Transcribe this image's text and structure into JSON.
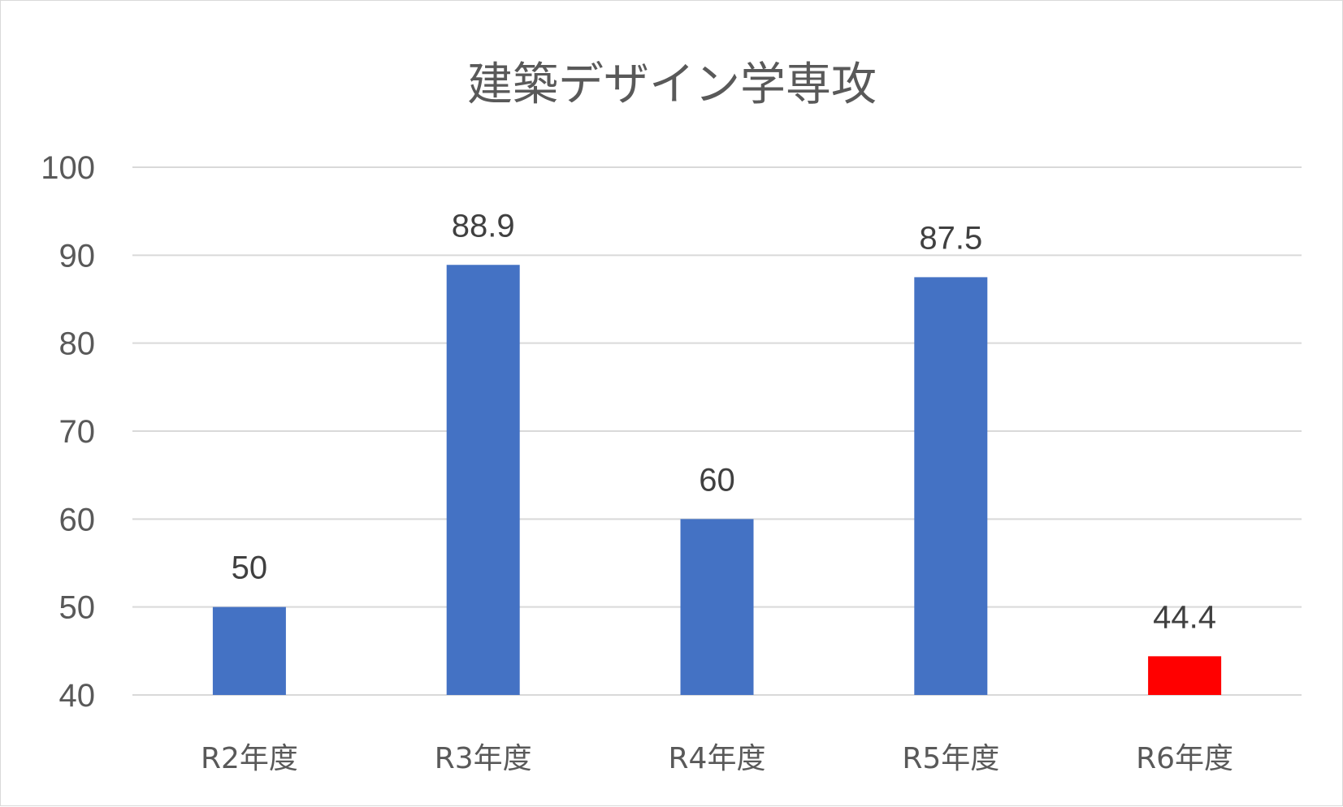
{
  "chart_data": {
    "type": "bar",
    "title": "建築デザイン学専攻",
    "categories": [
      "R2年度",
      "R3年度",
      "R4年度",
      "R5年度",
      "R6年度"
    ],
    "values": [
      50,
      88.9,
      60,
      87.5,
      44.4
    ],
    "data_labels": [
      "50",
      "88.9",
      "60",
      "87.5",
      "44.4"
    ],
    "colors": [
      "#4472c4",
      "#4472c4",
      "#4472c4",
      "#4472c4",
      "#ff0000"
    ],
    "ylim": [
      40,
      100
    ],
    "yticks": [
      40,
      50,
      60,
      70,
      80,
      90,
      100
    ],
    "ytick_labels": [
      "40",
      "50",
      "60",
      "70",
      "80",
      "90",
      "100"
    ],
    "xlabel": "",
    "ylabel": "",
    "grid": true,
    "legend": "none"
  }
}
